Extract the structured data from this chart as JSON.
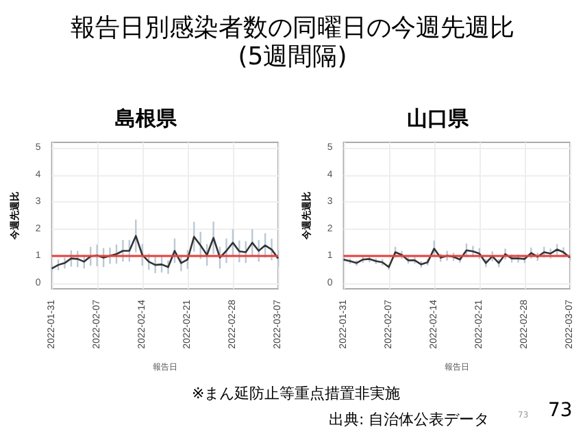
{
  "chart_data": [
    {
      "type": "line",
      "title": "島根県",
      "xlabel": "報告日",
      "ylabel": "今週先週比",
      "annotations": [
        "報告日別感染者数の同曜日の今週先週比\n(5週間隔)",
        "※まん延防止等重点措置非実施",
        "出典: 自治体公表データ",
        "73",
        "73"
      ],
      "categories": [
        "2022-01-31",
        null,
        null,
        null,
        null,
        null,
        null,
        "2022-02-07",
        null,
        null,
        null,
        null,
        null,
        null,
        "2022-02-14",
        null,
        null,
        null,
        null,
        null,
        null,
        "2022-02-21",
        null,
        null,
        null,
        null,
        null,
        null,
        "2022-02-28",
        null,
        null,
        null,
        null,
        null,
        null,
        "2022-03-07"
      ],
      "series": [
        {
          "color": "#333333",
          "values": [
            0.55,
            0.68,
            0.75,
            0.92,
            0.9,
            0.8,
            1.0,
            1.03,
            0.95,
            1.02,
            1.08,
            1.2,
            1.2,
            1.75,
            1.05,
            0.8,
            0.68,
            0.7,
            0.6,
            1.2,
            0.75,
            0.88,
            1.72,
            1.4,
            1.05,
            1.68,
            0.95,
            1.2,
            1.5,
            1.18,
            1.15,
            1.5,
            1.2,
            1.4,
            1.25,
            0.92
          ],
          "errors": [
            0.15,
            0.2,
            0.2,
            0.3,
            0.3,
            0.25,
            0.35,
            0.4,
            0.35,
            0.3,
            0.35,
            0.4,
            0.4,
            0.6,
            0.4,
            0.3,
            0.3,
            0.3,
            0.25,
            0.45,
            0.3,
            0.35,
            0.55,
            0.5,
            0.4,
            0.6,
            0.4,
            0.45,
            0.5,
            0.4,
            0.4,
            0.5,
            0.4,
            0.45,
            0.4,
            0.3
          ]
        }
      ],
      "ylim": [
        -0.2,
        5.2
      ],
      "yticks": [
        0,
        1,
        2,
        3,
        4,
        5
      ],
      "grid": true,
      "ref_lines": [
        {
          "axis": "y",
          "value": 1,
          "color": "#e8403a"
        }
      ]
    },
    {
      "type": "line",
      "title": "山口県",
      "xlabel": "報告日",
      "ylabel": "今週先週比",
      "categories": [
        "2022-01-31",
        null,
        null,
        null,
        null,
        null,
        null,
        "2022-02-07",
        null,
        null,
        null,
        null,
        null,
        null,
        "2022-02-14",
        null,
        null,
        null,
        null,
        null,
        null,
        "2022-02-21",
        null,
        null,
        null,
        null,
        null,
        null,
        "2022-02-28",
        null,
        null,
        null,
        null,
        null,
        null,
        "2022-03-07"
      ],
      "series": [
        {
          "color": "#333333",
          "values": [
            0.88,
            0.82,
            0.75,
            0.88,
            0.9,
            0.82,
            0.78,
            0.6,
            1.15,
            1.05,
            0.85,
            0.85,
            0.7,
            0.78,
            1.28,
            0.95,
            1.02,
            0.98,
            0.88,
            1.22,
            1.18,
            1.1,
            0.75,
            1.0,
            0.75,
            1.08,
            0.92,
            0.92,
            0.9,
            1.12,
            0.98,
            1.15,
            1.1,
            1.25,
            1.15,
            0.95
          ],
          "errors": [
            0.1,
            0.1,
            0.1,
            0.12,
            0.12,
            0.1,
            0.12,
            0.1,
            0.2,
            0.15,
            0.12,
            0.12,
            0.12,
            0.12,
            0.3,
            0.15,
            0.18,
            0.15,
            0.12,
            0.25,
            0.2,
            0.2,
            0.15,
            0.18,
            0.15,
            0.2,
            0.15,
            0.15,
            0.15,
            0.2,
            0.15,
            0.2,
            0.18,
            0.2,
            0.18,
            0.12
          ]
        }
      ],
      "ylim": [
        -0.2,
        5.2
      ],
      "yticks": [
        0,
        1,
        2,
        3,
        4,
        5
      ],
      "grid": true,
      "ref_lines": [
        {
          "axis": "y",
          "value": 1,
          "color": "#e8403a"
        }
      ]
    }
  ]
}
